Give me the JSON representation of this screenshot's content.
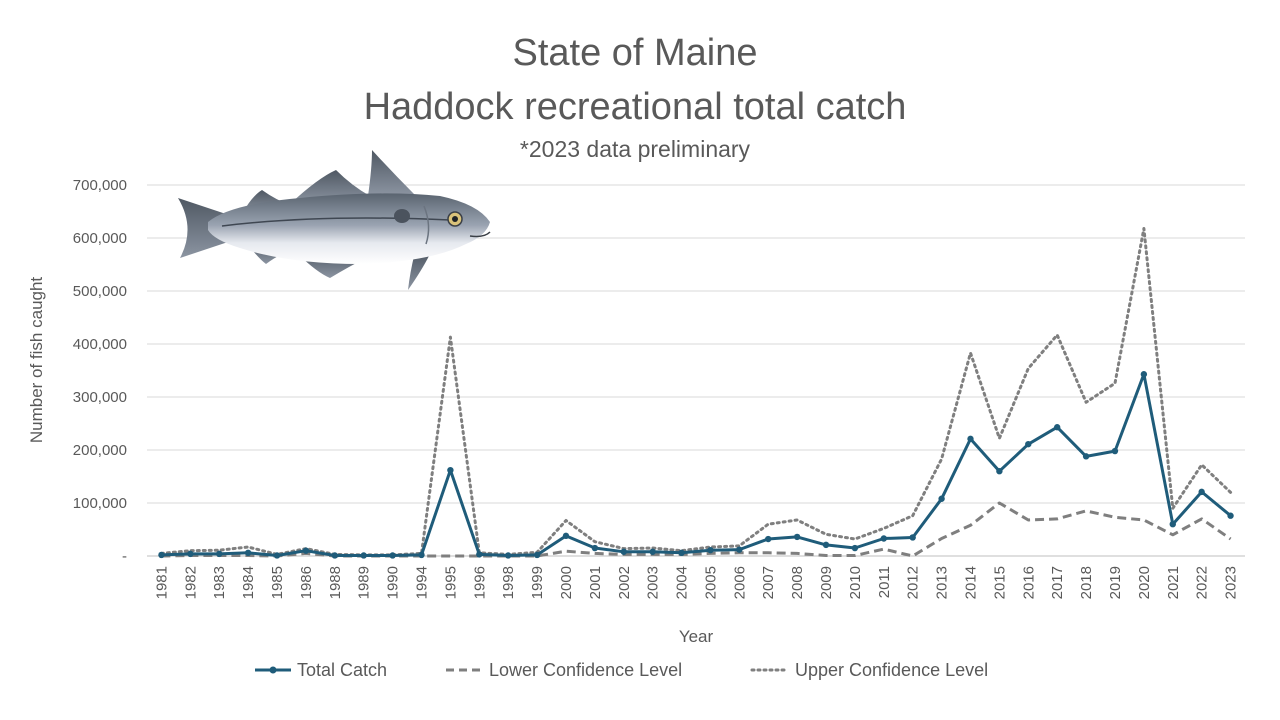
{
  "chart_data": {
    "type": "line",
    "title_line1": "State of Maine",
    "title_line2": "Haddock recreational total catch",
    "subtitle": "*2023 data preliminary",
    "xlabel": "Year",
    "ylabel": "Number of fish caught",
    "ylim": [
      0,
      700000
    ],
    "yticks": [
      0,
      100000,
      200000,
      300000,
      400000,
      500000,
      600000,
      700000
    ],
    "ytick_labels": [
      "-",
      "100,000",
      "200,000",
      "300,000",
      "400,000",
      "500,000",
      "600,000",
      "700,000"
    ],
    "categories": [
      "1981",
      "1982",
      "1983",
      "1984",
      "1985",
      "1986",
      "1988",
      "1989",
      "1990",
      "1994",
      "1995",
      "1996",
      "1998",
      "1999",
      "2000",
      "2001",
      "2002",
      "2003",
      "2004",
      "2005",
      "2006",
      "2007",
      "2008",
      "2009",
      "2010",
      "2011",
      "2012",
      "2013",
      "2014",
      "2015",
      "2016",
      "2017",
      "2018",
      "2019",
      "2020",
      "2021",
      "2022",
      "2023"
    ],
    "grid": true,
    "legend_position": "bottom",
    "series": [
      {
        "name": "Total Catch",
        "color": "#1f5c7a",
        "style": "solid-markers",
        "values": [
          2000,
          4000,
          4000,
          6000,
          1000,
          10000,
          1000,
          1000,
          1000,
          2000,
          162000,
          3000,
          1000,
          2000,
          38000,
          15000,
          8000,
          8000,
          6000,
          11000,
          12000,
          32000,
          36000,
          21000,
          15000,
          33000,
          35000,
          108000,
          221000,
          160000,
          211000,
          243000,
          188000,
          198000,
          343000,
          60000,
          121000,
          76000
        ]
      },
      {
        "name": "Lower Confidence Level",
        "color": "#7f7f7f",
        "style": "dashed",
        "values": [
          0,
          1000,
          1000,
          1000,
          0,
          5000,
          0,
          0,
          0,
          0,
          0,
          0,
          0,
          0,
          9000,
          5000,
          3000,
          3000,
          3000,
          5000,
          6000,
          6000,
          5000,
          1000,
          1000,
          13000,
          0,
          33000,
          58000,
          100000,
          68000,
          70000,
          85000,
          73000,
          68000,
          40000,
          70000,
          32000
        ]
      },
      {
        "name": "Upper Confidence Level",
        "color": "#7f7f7f",
        "style": "dotted",
        "values": [
          5000,
          10000,
          11000,
          17000,
          3000,
          14000,
          3000,
          2000,
          2000,
          5000,
          413000,
          6000,
          3000,
          7000,
          67000,
          27000,
          14000,
          15000,
          10000,
          17000,
          19000,
          60000,
          68000,
          41000,
          32000,
          52000,
          76000,
          183000,
          383000,
          222000,
          354000,
          417000,
          290000,
          326000,
          618000,
          90000,
          172000,
          120000
        ]
      }
    ]
  }
}
